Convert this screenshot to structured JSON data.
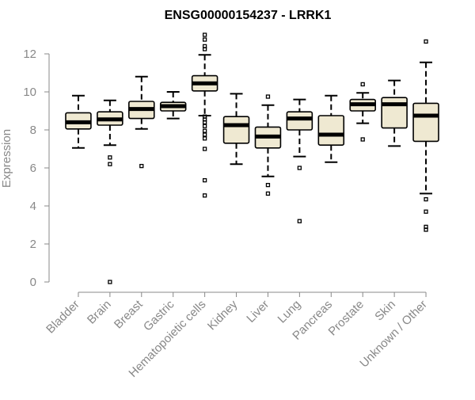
{
  "chart_data": {
    "type": "boxplot",
    "title": "ENSG00000154237 - LRRK1",
    "xlabel": "",
    "ylabel": "Expression",
    "ylim": [
      0,
      12
    ],
    "yticks": [
      0,
      2,
      4,
      6,
      8,
      10,
      12
    ],
    "grid": false,
    "legend": "none",
    "colors": {
      "box_fill": "#efe9d2",
      "stroke": "#000000",
      "axis": "#888888",
      "tick_label": "#888888"
    },
    "categories": [
      "Bladder",
      "Brain",
      "Breast",
      "Gastric",
      "Hematopoietic cells",
      "Kidney",
      "Liver",
      "Lung",
      "Pancreas",
      "Prostate",
      "Skin",
      "Unknown / Other"
    ],
    "boxes": [
      {
        "whisker_low": 7.05,
        "q1": 8.05,
        "median": 8.4,
        "q3": 8.9,
        "whisker_high": 9.8,
        "outliers": []
      },
      {
        "whisker_low": 7.2,
        "q1": 8.25,
        "median": 8.55,
        "q3": 8.95,
        "whisker_high": 9.55,
        "outliers": [
          6.55,
          6.2,
          0.0
        ]
      },
      {
        "whisker_low": 8.05,
        "q1": 8.6,
        "median": 9.1,
        "q3": 9.5,
        "whisker_high": 10.8,
        "outliers": [
          6.1
        ]
      },
      {
        "whisker_low": 8.6,
        "q1": 9.0,
        "median": 9.25,
        "q3": 9.45,
        "whisker_high": 10.0,
        "outliers": []
      },
      {
        "whisker_low": 8.75,
        "q1": 10.05,
        "median": 10.45,
        "q3": 10.85,
        "whisker_high": 11.95,
        "outliers": [
          13.0,
          12.75,
          12.4,
          12.25,
          8.7,
          8.55,
          8.4,
          8.2,
          7.95,
          7.75,
          7.55,
          7.0,
          5.35,
          4.55
        ]
      },
      {
        "whisker_low": 6.2,
        "q1": 7.3,
        "median": 8.25,
        "q3": 8.7,
        "whisker_high": 9.9,
        "outliers": []
      },
      {
        "whisker_low": 5.55,
        "q1": 7.05,
        "median": 7.65,
        "q3": 8.15,
        "whisker_high": 9.3,
        "outliers": [
          9.75,
          5.1,
          4.65
        ]
      },
      {
        "whisker_low": 6.6,
        "q1": 8.0,
        "median": 8.6,
        "q3": 8.95,
        "whisker_high": 9.6,
        "outliers": [
          6.0,
          3.2
        ]
      },
      {
        "whisker_low": 6.3,
        "q1": 7.2,
        "median": 7.75,
        "q3": 8.75,
        "whisker_high": 9.8,
        "outliers": []
      },
      {
        "whisker_low": 8.35,
        "q1": 9.0,
        "median": 9.35,
        "q3": 9.6,
        "whisker_high": 9.95,
        "outliers": [
          10.4,
          7.5
        ]
      },
      {
        "whisker_low": 7.15,
        "q1": 8.1,
        "median": 9.35,
        "q3": 9.7,
        "whisker_high": 10.6,
        "outliers": []
      },
      {
        "whisker_low": 4.65,
        "q1": 7.4,
        "median": 8.75,
        "q3": 9.4,
        "whisker_high": 11.55,
        "outliers": [
          12.65,
          4.35,
          3.7,
          2.9,
          2.75
        ]
      }
    ]
  }
}
